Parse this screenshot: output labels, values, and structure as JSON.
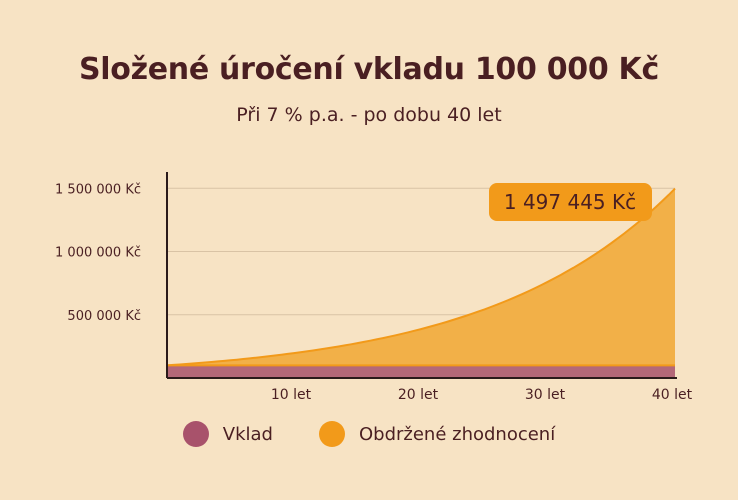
{
  "title": "Složené úročení vkladu 100 000 Kč",
  "subtitle": "Při 7 % p.a. - po dobu 40 let",
  "colors": {
    "background": "#f7e3c4",
    "text": "#4a1f22",
    "deposit": "#a8526b",
    "growth": "#f29a1a",
    "growth_fill": "#f2b048",
    "grid": "#d9c3a5"
  },
  "chart_data": {
    "type": "area",
    "title": "Složené úročení vkladu 100 000 Kč",
    "subtitle": "Při 7 % p.a. - po dobu 40 let",
    "x_ticks": [
      10,
      20,
      30,
      40
    ],
    "x_tick_labels": [
      "10 let",
      "20 let",
      "30 let",
      "40 let"
    ],
    "xlim": [
      0,
      40
    ],
    "y_ticks": [
      500000,
      1000000,
      1500000
    ],
    "y_tick_labels": [
      "500 000 Kč",
      "1 000 000 Kč",
      "1 500 000 Kč"
    ],
    "ylim": [
      0,
      1700000
    ],
    "grid": true,
    "annotation": "1 497 445 Kč",
    "series": [
      {
        "name": "Vklad",
        "x": [
          0,
          40
        ],
        "values": [
          100000,
          100000
        ]
      },
      {
        "name": "Obdržené zhodnocení",
        "x": [
          0,
          5,
          10,
          15,
          20,
          25,
          30,
          35,
          40
        ],
        "values": [
          100000,
          140255,
          196715,
          275903,
          386968,
          542743,
          761226,
          1067658,
          1497445
        ]
      }
    ],
    "legend": [
      "Vklad",
      "Obdržené zhodnocení"
    ],
    "legend_position": "bottom"
  }
}
